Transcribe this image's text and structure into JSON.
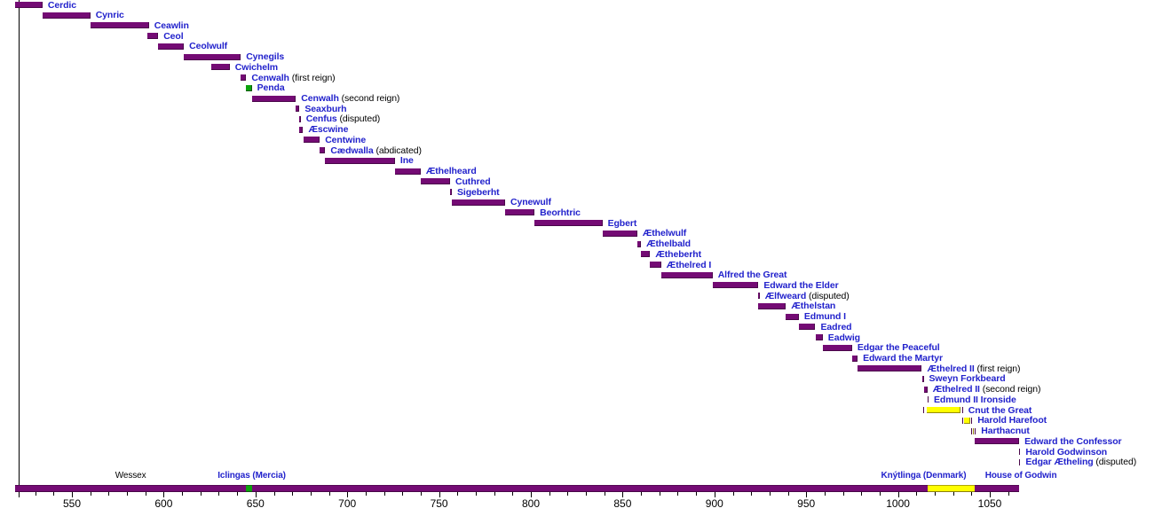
{
  "chart_data": {
    "type": "bar",
    "subtype": "timeline-gantt",
    "title": "",
    "description_visible_text_only": true,
    "axis": {
      "unit": "year",
      "xlim": [
        521,
        1070
      ],
      "major_tick_step": 50,
      "minor_tick_step": 10,
      "major_ticks": [
        550,
        600,
        650,
        700,
        750,
        800,
        850,
        900,
        950,
        1000,
        1050
      ],
      "tick_labels": [
        "550",
        "600",
        "650",
        "700",
        "750",
        "800",
        "850",
        "900",
        "950",
        "1000",
        "1050"
      ],
      "grid": false
    },
    "houses": {
      "wessex": {
        "color": "#740B74"
      },
      "mercia": {
        "color": "#0DA20D"
      },
      "knytlinga": {
        "color": "#FFFF00"
      }
    },
    "text_colors": {
      "link_blue": "#2222CC",
      "plain_black": "#000000"
    },
    "kings": [
      {
        "name": "Cerdic",
        "note": "",
        "house": "wessex",
        "from": 519,
        "till": 534
      },
      {
        "name": "Cynric",
        "note": "",
        "house": "wessex",
        "from": 534,
        "till": 560
      },
      {
        "name": "Ceawlin",
        "note": "",
        "house": "wessex",
        "from": 560,
        "till": 592
      },
      {
        "name": "Ceol",
        "note": "",
        "house": "wessex",
        "from": 591,
        "till": 597
      },
      {
        "name": "Ceolwulf",
        "note": "",
        "house": "wessex",
        "from": 597,
        "till": 611
      },
      {
        "name": "Cynegils",
        "note": "",
        "house": "wessex",
        "from": 611,
        "till": 642
      },
      {
        "name": "Cwichelm",
        "note": "",
        "house": "wessex",
        "from": 626,
        "till": 636
      },
      {
        "name": "Cenwalh",
        "note": "(first reign)",
        "house": "wessex",
        "from": 642,
        "till": 645
      },
      {
        "name": "Penda",
        "note": "",
        "house": "mercia",
        "from": 645,
        "till": 648
      },
      {
        "name": "Cenwalh",
        "note": "(second reign)",
        "house": "wessex",
        "from": 648,
        "till": 672
      },
      {
        "name": "Seaxburh",
        "note": "",
        "house": "wessex",
        "from": 672,
        "till": 674
      },
      {
        "name": "Cenfus",
        "note": "(disputed)",
        "house": "wessex",
        "from": 674,
        "till": 674
      },
      {
        "name": "Æscwine",
        "note": "",
        "house": "wessex",
        "from": 674,
        "till": 676
      },
      {
        "name": "Centwine",
        "note": "",
        "house": "wessex",
        "from": 676,
        "till": 685
      },
      {
        "name": "Cædwalla",
        "note": "(abdicated)",
        "house": "wessex",
        "from": 685,
        "till": 688
      },
      {
        "name": "Ine",
        "note": "",
        "house": "wessex",
        "from": 688,
        "till": 726
      },
      {
        "name": "Æthelheard",
        "note": "",
        "house": "wessex",
        "from": 726,
        "till": 740
      },
      {
        "name": "Cuthred",
        "note": "",
        "house": "wessex",
        "from": 740,
        "till": 756
      },
      {
        "name": "Sigeberht",
        "note": "",
        "house": "wessex",
        "from": 756,
        "till": 757
      },
      {
        "name": "Cynewulf",
        "note": "",
        "house": "wessex",
        "from": 757,
        "till": 786
      },
      {
        "name": "Beorhtric",
        "note": "",
        "house": "wessex",
        "from": 786,
        "till": 802
      },
      {
        "name": "Egbert",
        "note": "",
        "house": "wessex",
        "from": 802,
        "till": 839
      },
      {
        "name": "Æthelwulf",
        "note": "",
        "house": "wessex",
        "from": 839,
        "till": 858
      },
      {
        "name": "Æthelbald",
        "note": "",
        "house": "wessex",
        "from": 858,
        "till": 860
      },
      {
        "name": "Ætheberht",
        "note": "",
        "house": "wessex",
        "from": 860,
        "till": 865
      },
      {
        "name": "Æthelred I",
        "note": "",
        "house": "wessex",
        "from": 865,
        "till": 871
      },
      {
        "name": "Alfred the Great",
        "note": "",
        "house": "wessex",
        "from": 871,
        "till": 899
      },
      {
        "name": "Edward the Elder",
        "note": "",
        "house": "wessex",
        "from": 899,
        "till": 924
      },
      {
        "name": "Ælfweard",
        "note": "(disputed)",
        "house": "wessex",
        "from": 924,
        "till": 924
      },
      {
        "name": "Æthelstan",
        "note": "",
        "house": "wessex",
        "from": 924,
        "till": 939
      },
      {
        "name": "Edmund I",
        "note": "",
        "house": "wessex",
        "from": 939,
        "till": 946
      },
      {
        "name": "Eadred",
        "note": "",
        "house": "wessex",
        "from": 946,
        "till": 955
      },
      {
        "name": "Eadwig",
        "note": "",
        "house": "wessex",
        "from": 955,
        "till": 959
      },
      {
        "name": "Edgar the Peaceful",
        "note": "",
        "house": "wessex",
        "from": 959,
        "till": 975
      },
      {
        "name": "Edward the Martyr",
        "note": "",
        "house": "wessex",
        "from": 975,
        "till": 978
      },
      {
        "name": "Æthelred II",
        "note": "(first reign)",
        "house": "wessex",
        "from": 978,
        "till": 1013
      },
      {
        "name": "Sweyn Forkbeard",
        "note": "",
        "house": "wessex",
        "from": 1013,
        "till": 1014
      },
      {
        "name": "Æthelred II",
        "note": "(second reign)",
        "house": "wessex",
        "from": 1014,
        "till": 1016
      },
      {
        "name": "Edmund II Ironside",
        "note": "",
        "house": "wessex",
        "from": 1016,
        "till": 1016
      },
      {
        "name": "Cnut the Great",
        "note": "",
        "house": "knytlinga",
        "from": 1016,
        "till": 1035,
        "segments": [
          {
            "from": 1013.6,
            "till": 1014.2,
            "house": "wessex"
          },
          {
            "from": 1015.8,
            "till": 1034.2,
            "house": "knytlinga"
          },
          {
            "from": 1034.8,
            "till": 1035.4,
            "house": "wessex"
          }
        ]
      },
      {
        "name": "Harold Harefoot",
        "note": "",
        "house": "knytlinga",
        "from": 1035,
        "till": 1040,
        "segments": [
          {
            "from": 1034.8,
            "till": 1035.4,
            "house": "wessex"
          },
          {
            "from": 1035.9,
            "till": 1039.3,
            "house": "knytlinga"
          },
          {
            "from": 1039.8,
            "till": 1040.4,
            "house": "wessex"
          }
        ]
      },
      {
        "name": "Harthacnut",
        "note": "",
        "house": "knytlinga",
        "from": 1040,
        "till": 1042,
        "segments": [
          {
            "from": 1039.8,
            "till": 1040.4,
            "house": "wessex"
          },
          {
            "from": 1040.8,
            "till": 1041.4,
            "house": "knytlinga"
          },
          {
            "from": 1041.8,
            "till": 1042.4,
            "house": "wessex"
          }
        ]
      },
      {
        "name": "Edward the Confessor",
        "note": "",
        "house": "wessex",
        "from": 1042,
        "till": 1066
      },
      {
        "name": "Harold Godwinson",
        "note": "",
        "house": "wessex",
        "from": 1066,
        "till": 1066
      },
      {
        "name": "Edgar Ætheling",
        "note": "(disputed)",
        "house": "wessex",
        "from": 1066,
        "till": 1066
      }
    ],
    "dynasty_bar": {
      "segments": [
        {
          "from": 519,
          "till": 645,
          "house": "wessex"
        },
        {
          "from": 645,
          "till": 648,
          "house": "mercia"
        },
        {
          "from": 648,
          "till": 1016,
          "house": "wessex"
        },
        {
          "from": 1016,
          "till": 1042,
          "house": "knytlinga"
        },
        {
          "from": 1042,
          "till": 1066,
          "house": "wessex"
        }
      ]
    },
    "dynasty_labels": [
      {
        "text": "Wessex",
        "color": "black",
        "at_year": 582
      },
      {
        "text": "Iclingas (Mercia)",
        "color": "blue",
        "at_year": 648
      },
      {
        "text": "Knýtlinga (Denmark)",
        "color": "blue",
        "at_year": 1014
      },
      {
        "text": "House of Godwin",
        "color": "blue",
        "at_year": 1067
      }
    ]
  }
}
